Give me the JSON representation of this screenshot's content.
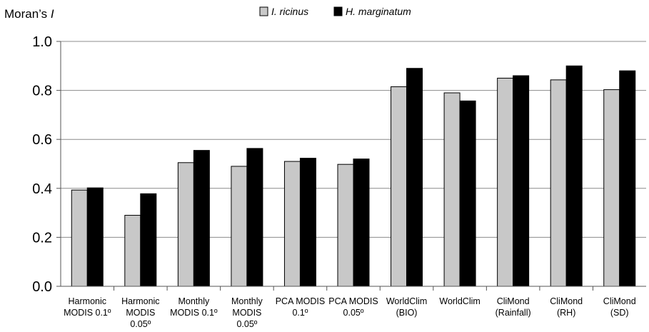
{
  "chart_data": {
    "type": "bar",
    "title": "",
    "ylabel_prefix": "Moran’s ",
    "ylabel_italic": "I",
    "xlabel": "",
    "ylim": [
      0.0,
      1.0
    ],
    "yticks": [
      0.0,
      0.2,
      0.4,
      0.6,
      0.8,
      1.0
    ],
    "ytick_labels": [
      "0.0",
      "0.2",
      "0.4",
      "0.6",
      "0.8",
      "1.0"
    ],
    "grid": true,
    "legend_position": "top-center",
    "categories": [
      [
        "Harmonic",
        "MODIS 0.1º"
      ],
      [
        "Harmonic",
        "MODIS",
        "0.05º"
      ],
      [
        "Monthly",
        "MODIS 0.1º"
      ],
      [
        "Monthly",
        "MODIS",
        "0.05º"
      ],
      [
        "PCA MODIS",
        "0.1º"
      ],
      [
        "PCA MODIS",
        "0.05º"
      ],
      [
        "WorldClim",
        "(BIO)"
      ],
      [
        "WorldClim"
      ],
      [
        "CliMond",
        "(Rainfall)"
      ],
      [
        "CliMond",
        "(RH)"
      ],
      [
        "CliMond",
        "(SD)"
      ]
    ],
    "series": [
      {
        "name": "I. ricinus",
        "color": "#c8c8c8",
        "values": [
          0.393,
          0.29,
          0.505,
          0.49,
          0.51,
          0.498,
          0.815,
          0.79,
          0.85,
          0.843,
          0.803
        ]
      },
      {
        "name": "H. marginatum",
        "color": "#000000",
        "values": [
          0.402,
          0.378,
          0.555,
          0.563,
          0.523,
          0.52,
          0.89,
          0.757,
          0.86,
          0.9,
          0.88
        ]
      }
    ]
  }
}
